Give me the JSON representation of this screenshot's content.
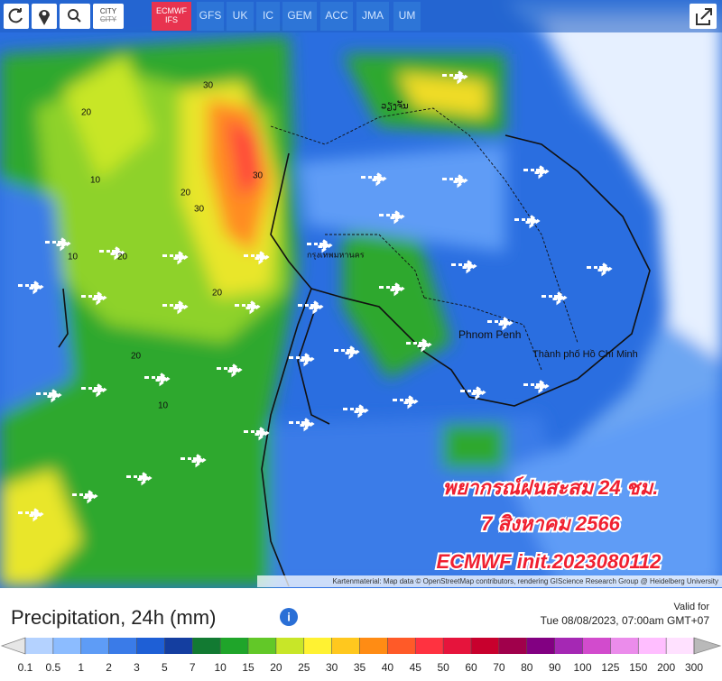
{
  "toolbar": {
    "city": "CITY",
    "models": [
      "ECMWF IFS",
      "GFS",
      "UK",
      "IC",
      "GEM",
      "ACC",
      "JMA",
      "UM"
    ],
    "active_model": 0
  },
  "map": {
    "overlay_lines": [
      "พยากรณ์ฝนสะสม 24 ชม.",
      "7 สิงหาคม 2566",
      "ECMWF init.2023080112"
    ],
    "places": [
      "Phnom Penh",
      "Thành phố Hồ Chí Minh",
      "กรุงเทพมหานคร",
      "ວຽງຈັນ"
    ],
    "contour_labels": [
      "20",
      "30",
      "30",
      "20",
      "10",
      "20",
      "10",
      "20",
      "30",
      "10",
      "20"
    ],
    "attribution": "Kartenmaterial: Map data © OpenStreetMap contributors, rendering GIScience Research Group @ Heidelberg University"
  },
  "footer": {
    "title": "Precipitation, 24h (mm)",
    "valid_label": "Valid for",
    "valid_time": "Tue 08/08/2023, 07:00am GMT+07"
  },
  "legend": {
    "ticks": [
      0.1,
      0.5,
      1,
      2,
      3,
      5,
      7,
      10,
      15,
      20,
      25,
      30,
      35,
      40,
      45,
      50,
      60,
      70,
      80,
      90,
      100,
      125,
      150,
      200,
      300
    ],
    "colors": [
      "#e6e6e6",
      "#b4d2ff",
      "#8cbcff",
      "#5e9cf6",
      "#3a7be8",
      "#1e5fd6",
      "#143ea0",
      "#127a32",
      "#1fa52a",
      "#62c828",
      "#c8e628",
      "#fff232",
      "#ffc81e",
      "#ff8c14",
      "#ff5a28",
      "#ff3240",
      "#e6143c",
      "#c8002d",
      "#a0004b",
      "#820082",
      "#a528b4",
      "#d24bcd",
      "#eb8ceb",
      "#ffbeff",
      "#ffe1ff",
      "#b9b9b9"
    ]
  }
}
